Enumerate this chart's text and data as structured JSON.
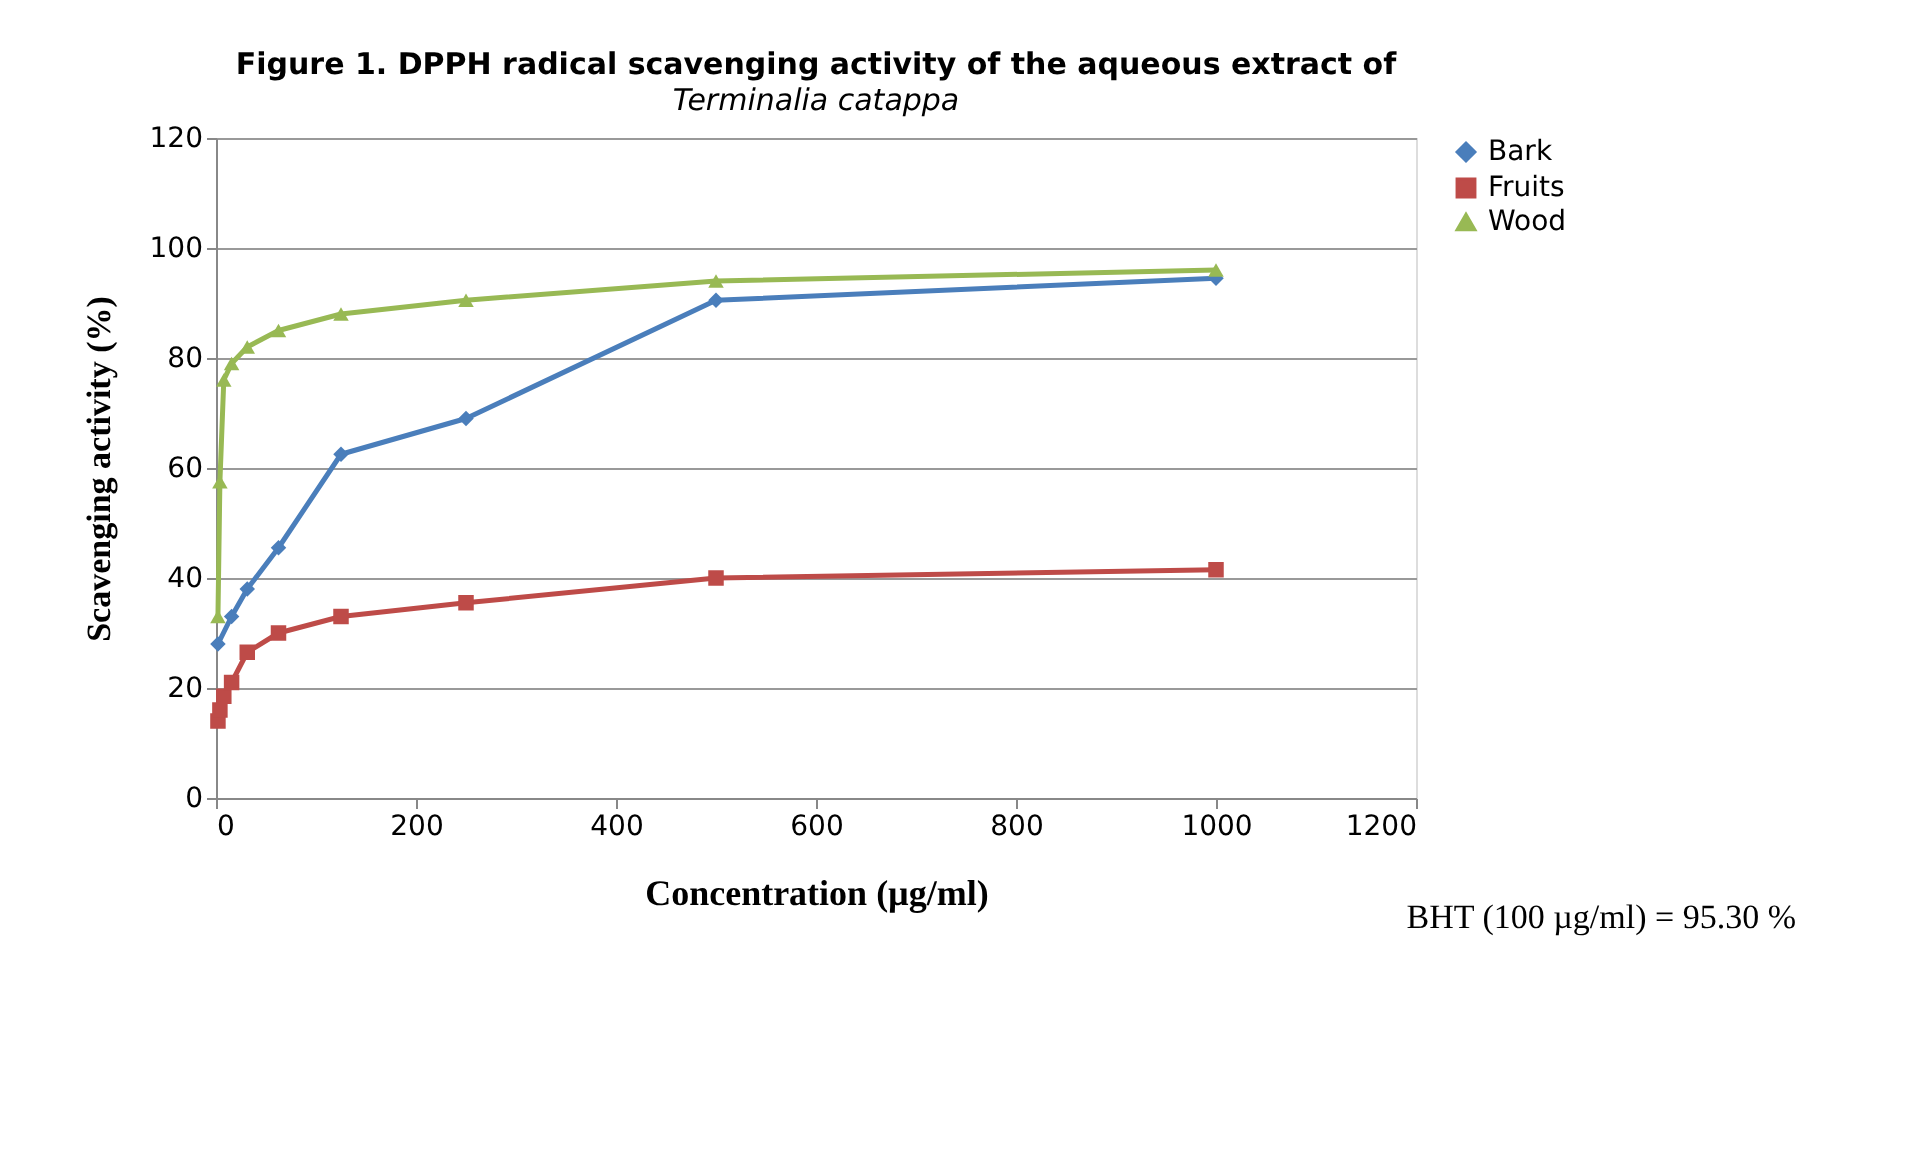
{
  "chart_data": {
    "type": "line",
    "title": "Figure 1. DPPH radical scavenging activity of the aqueous extract of",
    "subtitle": "Terminalia catappa",
    "xlabel": "Concentration (µg/ml)",
    "ylabel": "Scavenging activity (%)",
    "xlim": [
      0,
      1200
    ],
    "xticks": [
      0,
      200,
      400,
      600,
      800,
      1000,
      1200
    ],
    "ylim": [
      0,
      120
    ],
    "yticks": [
      0,
      20,
      40,
      60,
      80,
      100,
      120
    ],
    "grid": "y",
    "legend": "right",
    "series": [
      {
        "name": "Bark",
        "color": "#4a7ebb",
        "marker": "diamond",
        "x": [
          1.95,
          15.6,
          31.25,
          62.5,
          125,
          250,
          500,
          1000
        ],
        "values": [
          28,
          33,
          38,
          45.5,
          62.5,
          69,
          90.5,
          94.5
        ]
      },
      {
        "name": "Fruits",
        "color": "#be4b48",
        "marker": "square",
        "x": [
          1.95,
          3.9,
          7.8,
          15.6,
          31.25,
          62.5,
          125,
          250,
          500,
          1000
        ],
        "values": [
          14,
          16,
          18.5,
          21,
          26.5,
          30,
          33,
          35.5,
          40,
          41.5
        ]
      },
      {
        "name": "Wood",
        "color": "#98b954",
        "marker": "triangle",
        "x": [
          1.95,
          3.9,
          7.8,
          15.6,
          31.25,
          62.5,
          125,
          250,
          500,
          1000
        ],
        "values": [
          33,
          57.5,
          76,
          79,
          82,
          85,
          88,
          90.5,
          94,
          96
        ]
      }
    ],
    "annotations": [
      "BHT (100 µg/ml) = 95.30 %"
    ]
  }
}
